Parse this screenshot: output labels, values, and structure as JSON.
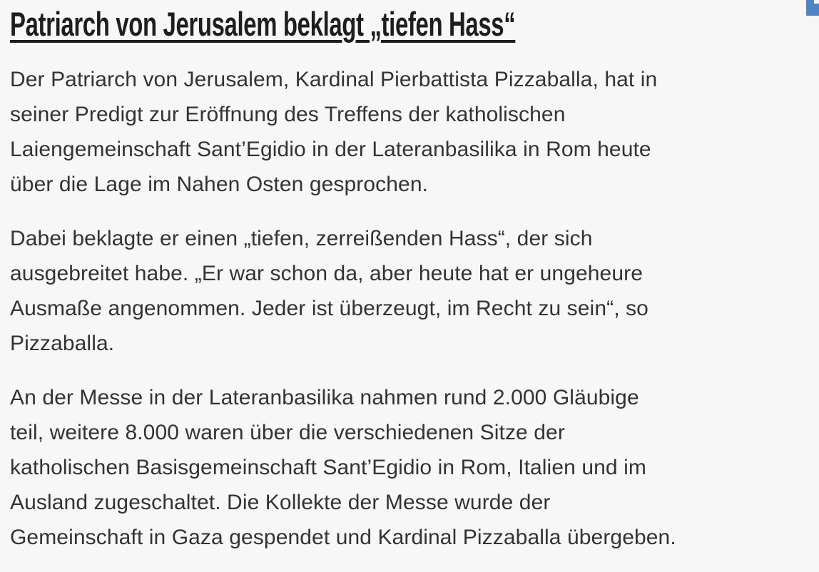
{
  "article": {
    "headline": "Patriarch von Jerusalem beklagt „tiefen Hass“",
    "paragraphs": [
      [
        "Der Patriarch von Jerusalem, Kardinal Pierbattista Pizzaballa, hat in",
        "seiner Predigt zur Eröffnung des Treffens der katholischen",
        "Laiengemeinschaft Sant’Egidio in der Lateranbasilika in Rom heute",
        "über die Lage im Nahen Osten gesprochen."
      ],
      [
        "Dabei beklagte er einen „tiefen, zerreißenden Hass“, der sich",
        "ausgebreitet habe. „Er war schon da, aber heute hat er ungeheure",
        "Ausmaße angenommen. Jeder ist überzeugt, im Recht zu sein“, so",
        "Pizzaballa."
      ],
      [
        "An der Messe in der Lateranbasilika nahmen rund 2.000 Gläubige",
        "teil, weitere 8.000 waren über die verschiedenen Sitze der",
        "katholischen Basisgemeinschaft Sant’Egidio in Rom, Italien und im",
        "Ausland zugeschaltet. Die Kollekte der Messe wurde der",
        "Gemeinschaft in Gaza gespendet und Kardinal Pizzaballa übergeben."
      ]
    ]
  },
  "colors": {
    "background": "#f7f7f7",
    "headline_text": "#1e1e1e",
    "body_text": "#333333",
    "corner_accent_blue": "#5084c3"
  }
}
